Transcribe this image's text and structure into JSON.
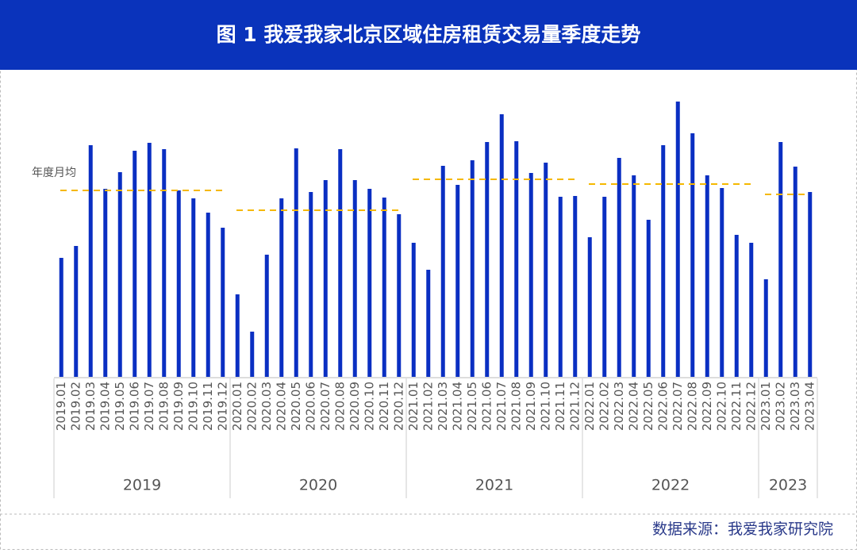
{
  "chart_data": {
    "type": "bar",
    "title": "图 1  我爱我家北京区域住房租赁交易量季度走势",
    "annotation": "年度月均",
    "source": "数据来源：我爱我家研究院",
    "color": "#0a2fc2",
    "average_color": "#f5b800",
    "ylim": [
      0,
      360
    ],
    "groups": [
      {
        "name": "2019",
        "categories": [
          "2019.01",
          "2019.02",
          "2019.03",
          "2019.04",
          "2019.05",
          "2019.06",
          "2019.07",
          "2019.08",
          "2019.09",
          "2019.10",
          "2019.11",
          "2019.12"
        ],
        "values": [
          150,
          165,
          292,
          237,
          258,
          285,
          295,
          287,
          235,
          225,
          207,
          188
        ],
        "average": 235
      },
      {
        "name": "2020",
        "categories": [
          "2020.01",
          "2020.02",
          "2020.03",
          "2020.04",
          "2020.05",
          "2020.06",
          "2020.07",
          "2020.08",
          "2020.09",
          "2020.10",
          "2020.11",
          "2020.12"
        ],
        "values": [
          104,
          57,
          154,
          225,
          288,
          233,
          248,
          287,
          248,
          237,
          226,
          205
        ],
        "average": 210
      },
      {
        "name": "2021",
        "categories": [
          "2021.01",
          "2021.02",
          "2021.03",
          "2021.04",
          "2021.05",
          "2021.06",
          "2021.07",
          "2021.08",
          "2021.09",
          "2021.10",
          "2021.11",
          "2021.12"
        ],
        "values": [
          169,
          135,
          266,
          242,
          273,
          296,
          331,
          297,
          257,
          270,
          227,
          228
        ],
        "average": 249
      },
      {
        "name": "2022",
        "categories": [
          "2022.01",
          "2022.02",
          "2022.03",
          "2022.04",
          "2022.05",
          "2022.06",
          "2022.07",
          "2022.08",
          "2022.09",
          "2022.10",
          "2022.11",
          "2022.12"
        ],
        "values": [
          176,
          227,
          276,
          254,
          198,
          292,
          347,
          307,
          254,
          238,
          179,
          169
        ],
        "average": 243
      },
      {
        "name": "2023",
        "categories": [
          "2023.01",
          "2023.02",
          "2023.03",
          "2023.04"
        ],
        "values": [
          123,
          296,
          265,
          233
        ],
        "average": 230
      }
    ]
  }
}
